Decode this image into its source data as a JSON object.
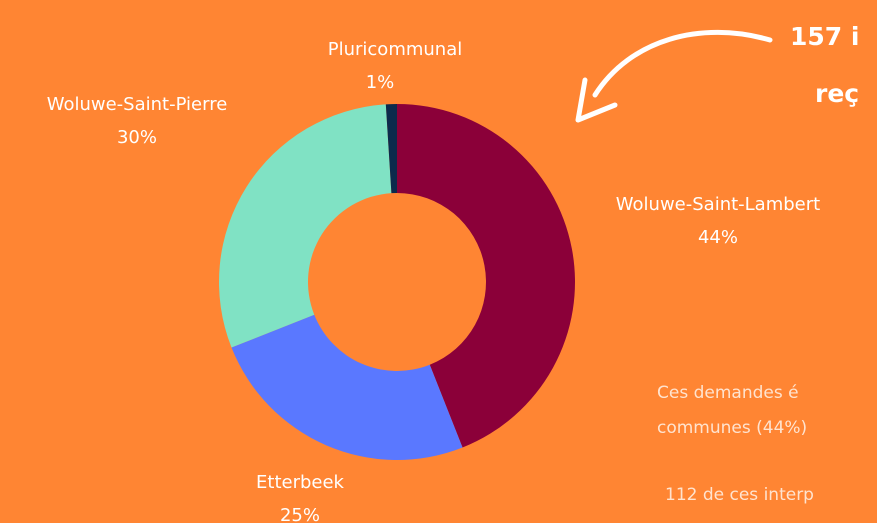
{
  "chart_data": {
    "type": "pie",
    "categories": [
      "Woluwe-Saint-Lambert",
      "Etterbeek",
      "Woluwe-Saint-Pierre",
      "Pluricommunal"
    ],
    "values": [
      44,
      25,
      30,
      1
    ],
    "value_labels": [
      "44%",
      "25%",
      "30%",
      "1%"
    ],
    "colors": [
      "#8b0039",
      "#5a78ff",
      "#80e2c4",
      "#0c2a4c"
    ],
    "donut": true,
    "annotations": [
      "157 i",
      "reç",
      "Ces demandes é",
      "communes (44%)",
      "112 de ces interp"
    ]
  }
}
